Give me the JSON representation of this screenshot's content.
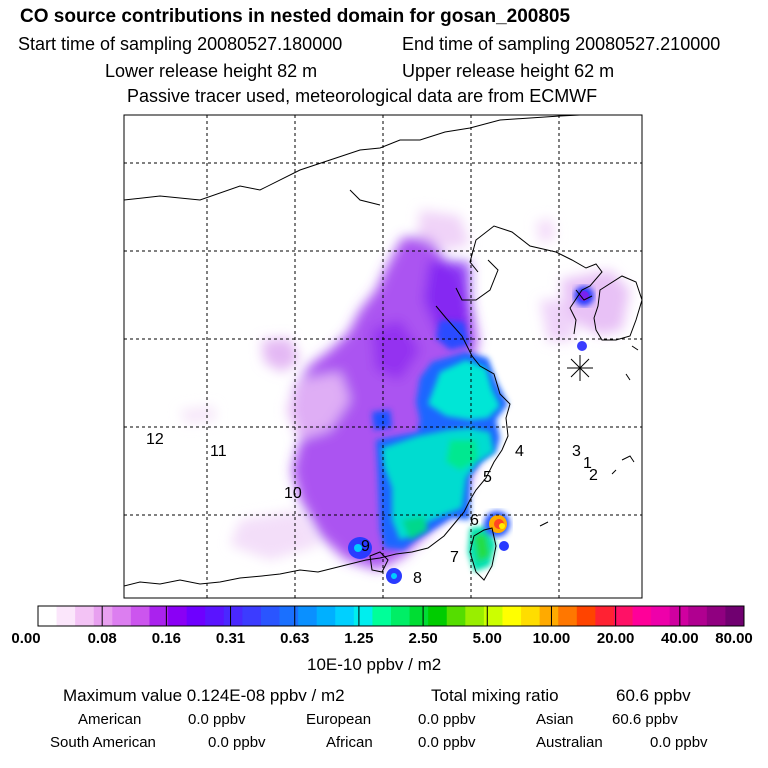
{
  "header": {
    "title": "CO  source contributions in nested domain for gosan_200805",
    "start_time": "Start time of sampling 20080527.180000",
    "end_time": "End time of sampling 20080527.210000",
    "lower_height": "Lower release height   82 m",
    "upper_height": "Upper release height   62 m",
    "note": "Passive tracer used, meteorological data are from ECMWF"
  },
  "map": {
    "region_labels": [
      "1",
      "2",
      "3",
      "4",
      "5",
      "6",
      "7",
      "8",
      "9",
      "10",
      "11",
      "12"
    ],
    "receptor_marker": "gosan-asterisk"
  },
  "colorbar": {
    "tick_labels": [
      "0.00",
      "0.08",
      "0.16",
      "0.31",
      "0.63",
      "1.25",
      "2.50",
      "5.00",
      "10.00",
      "20.00",
      "40.00",
      "80.00"
    ],
    "units": "10E-10 ppbv / m2",
    "colors": [
      "#ffffff",
      "#fbe6fb",
      "#f3c3f5",
      "#e8a0f0",
      "#dc7ef0",
      "#cc55ee",
      "#aa22ee",
      "#8a00f5",
      "#6e00ff",
      "#5a14ff",
      "#4a28ff",
      "#3c3cff",
      "#2a55ff",
      "#1a70ff",
      "#0a90ff",
      "#00b0ff",
      "#00d0ff",
      "#00eeee",
      "#00ff99",
      "#00ee66",
      "#00dd33",
      "#00cc00",
      "#55dd00",
      "#99ee00",
      "#ccff00",
      "#ffff00",
      "#ffdd00",
      "#ffaa00",
      "#ff7700",
      "#ff4400",
      "#ff2233",
      "#ff1166",
      "#ff0099",
      "#ee00aa",
      "#d000a0",
      "#b00090",
      "#900080",
      "#700070"
    ]
  },
  "summary": {
    "max_label": "Maximum value  0.124E-08 ppbv / m2",
    "total_label": "Total mixing ratio",
    "total_value": "60.6 ppbv",
    "regions": [
      {
        "name": "American",
        "value": "0.0 ppbv"
      },
      {
        "name": "European",
        "value": "0.0 ppbv"
      },
      {
        "name": "Asian",
        "value": "60.6 ppbv"
      },
      {
        "name": "South American",
        "value": "0.0 ppbv"
      },
      {
        "name": "African",
        "value": "0.0 ppbv"
      },
      {
        "name": "Australian",
        "value": "0.0 ppbv"
      }
    ]
  }
}
